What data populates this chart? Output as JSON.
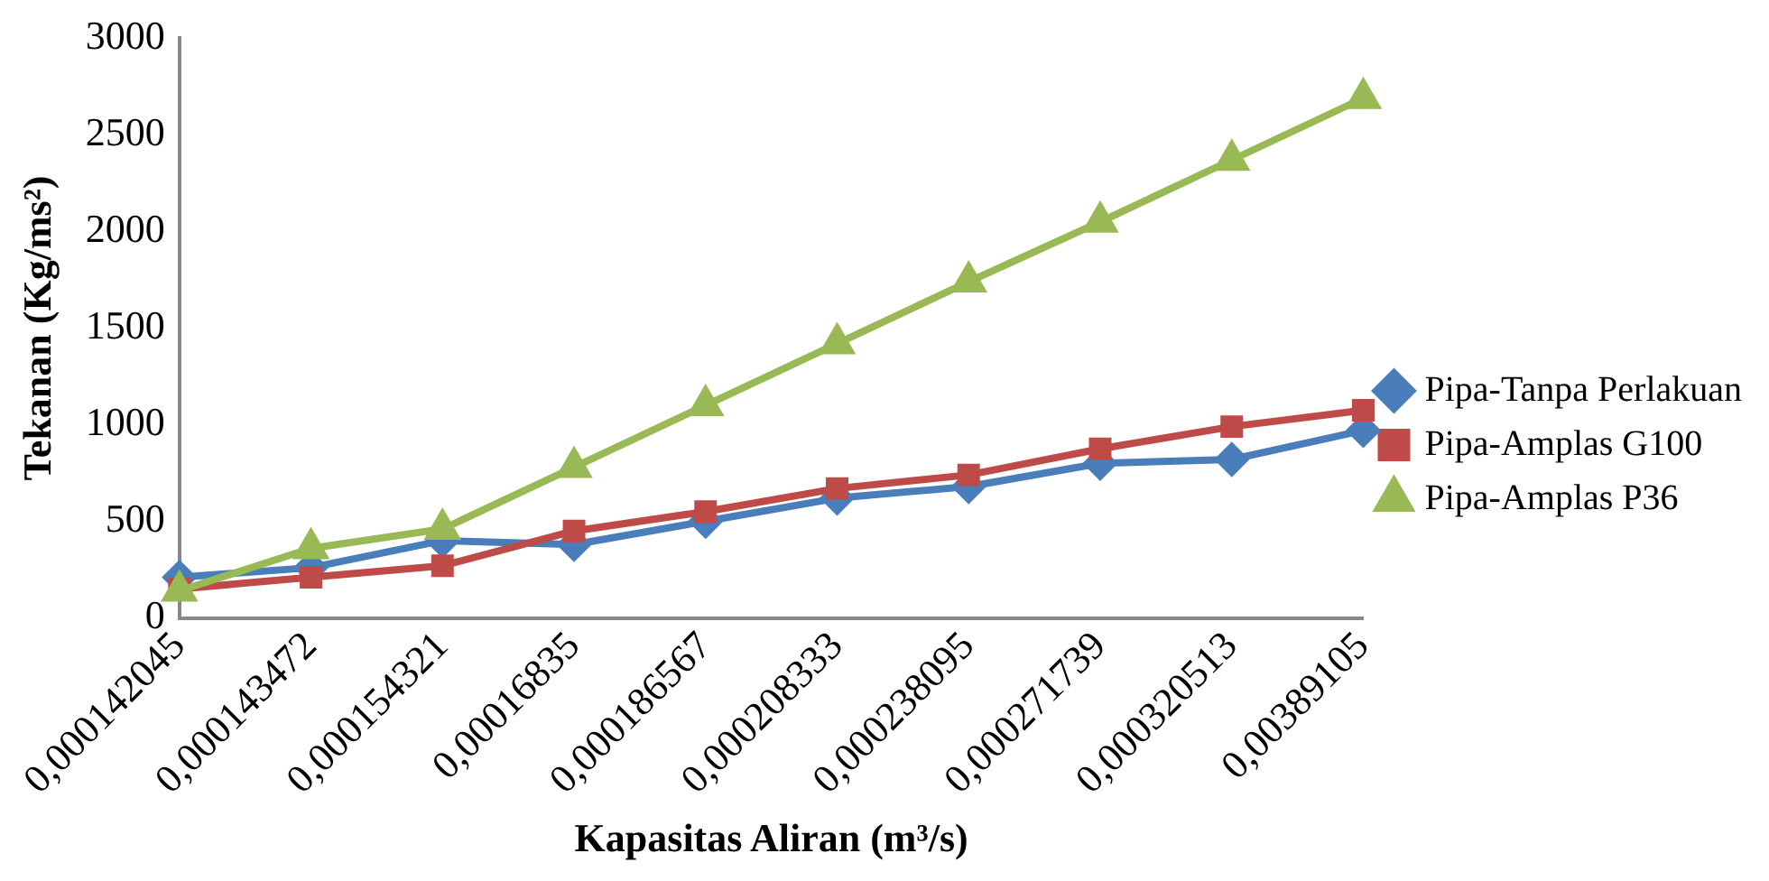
{
  "chart_data": {
    "type": "line",
    "xlabel": "Kapasitas Aliran (m³/s)",
    "ylabel": "Tekanan (Kg/ms²)",
    "categories": [
      "0,000142045",
      "0,000143472",
      "0,000154321",
      "0,00016835",
      "0,000186567",
      "0,000208333",
      "0,000238095",
      "0,000271739",
      "0,000320513",
      "0,00389105"
    ],
    "series": [
      {
        "name": "Pipa-Tanpa Perlakuan",
        "color": "#4a7ebb",
        "marker": "diamond",
        "values": [
          210,
          260,
          400,
          380,
          500,
          620,
          680,
          800,
          820,
          970
        ]
      },
      {
        "name": "Pipa-Amplas G100",
        "color": "#be4b48",
        "marker": "square",
        "values": [
          150,
          210,
          270,
          450,
          550,
          670,
          740,
          875,
          990,
          1075
        ]
      },
      {
        "name": "Pipa-Amplas P36",
        "color": "#98b954",
        "marker": "triangle",
        "values": [
          140,
          360,
          460,
          780,
          1100,
          1420,
          1740,
          2050,
          2370,
          2690
        ]
      }
    ],
    "ylim": [
      0,
      3000
    ],
    "yticks": [
      0,
      500,
      1000,
      1500,
      2000,
      2500,
      3000
    ],
    "grid": false,
    "legend": "right"
  }
}
